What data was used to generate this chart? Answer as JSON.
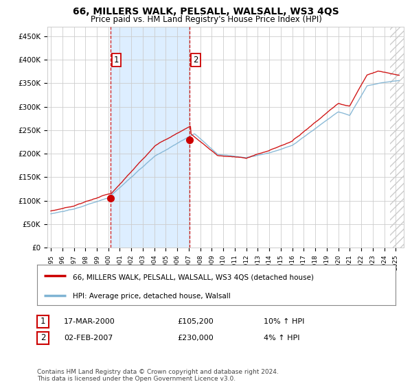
{
  "title": "66, MILLERS WALK, PELSALL, WALSALL, WS3 4QS",
  "subtitle": "Price paid vs. HM Land Registry's House Price Index (HPI)",
  "ylabel_ticks": [
    "£0",
    "£50K",
    "£100K",
    "£150K",
    "£200K",
    "£250K",
    "£300K",
    "£350K",
    "£400K",
    "£450K"
  ],
  "ytick_values": [
    0,
    50000,
    100000,
    150000,
    200000,
    250000,
    300000,
    350000,
    400000,
    450000
  ],
  "ylim": [
    0,
    470000
  ],
  "xlim_start": 1994.7,
  "xlim_end": 2025.7,
  "sale1_date": 2000.21,
  "sale1_price": 105200,
  "sale2_date": 2007.09,
  "sale2_price": 230000,
  "vline1_x": 2000.21,
  "vline2_x": 2007.09,
  "legend_line1_label": "66, MILLERS WALK, PELSALL, WALSALL, WS3 4QS (detached house)",
  "legend_line2_label": "HPI: Average price, detached house, Walsall",
  "table_row1": [
    "1",
    "17-MAR-2000",
    "£105,200",
    "10% ↑ HPI"
  ],
  "table_row2": [
    "2",
    "02-FEB-2007",
    "£230,000",
    "4% ↑ HPI"
  ],
  "footer": "Contains HM Land Registry data © Crown copyright and database right 2024.\nThis data is licensed under the Open Government Licence v3.0.",
  "line_color_red": "#cc0000",
  "line_color_blue": "#7fb3d3",
  "vline_color": "#cc0000",
  "shade_color": "#ddeeff",
  "background_color": "#ffffff",
  "grid_color": "#cccccc",
  "box_color": "#cc0000",
  "hatch_start": 2024.5
}
